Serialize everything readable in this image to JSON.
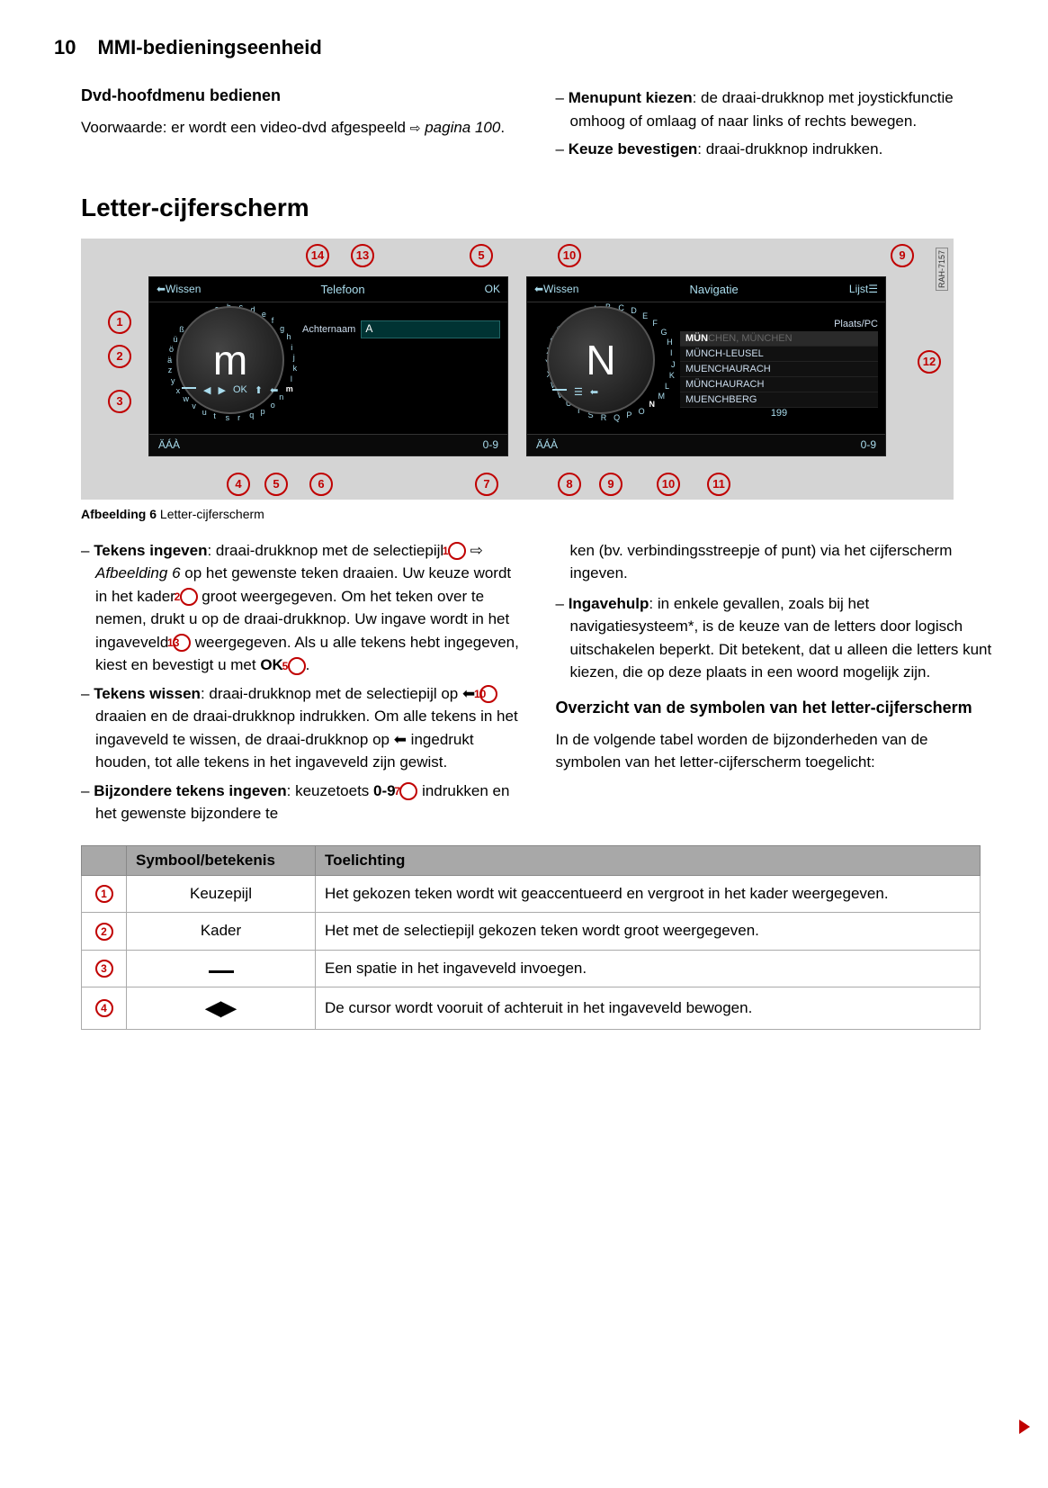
{
  "page": {
    "number": "10",
    "chapter": "MMI-bedieningseenheid"
  },
  "left_top": {
    "heading": "Dvd-hoofdmenu bedienen",
    "p1_a": "Voorwaarde: er wordt een video-dvd afgespeeld ",
    "p1_b": "pagina 100",
    "p1_c": "."
  },
  "right_top": {
    "item1_b": "Menupunt kiezen",
    "item1_t": ": de draai-drukknop met joystickfunctie omhoog of omlaag of naar links of rechts bewegen.",
    "item2_b": "Keuze bevestigen",
    "item2_t": ": draai-drukknop indrukken."
  },
  "big_heading": "Letter-cijferscherm",
  "figure": {
    "rah": "RAH-7157",
    "caption_b": "Afbeelding 6",
    "caption_t": " Letter-cijferscherm",
    "screen1": {
      "top_left": "⬅Wissen",
      "top_center": "Telefoon",
      "top_right": "OK",
      "input_label": "Achternaam",
      "input_value": "A",
      "dial_letter": "m",
      "bottom_left": "ÄÁÀ",
      "bottom_right": "0-9",
      "sym_ok": "OK",
      "ring": [
        "a",
        "b",
        "c",
        "d",
        "e",
        "f",
        "g",
        "h",
        "i",
        "j",
        "k",
        "l",
        "m",
        "n",
        "o",
        "p",
        "q",
        "r",
        "s",
        "t",
        "u",
        "v",
        "w",
        "x",
        "y",
        "z",
        "ä",
        "ö",
        "ü",
        "ß"
      ]
    },
    "screen2": {
      "top_left": "⬅Wissen",
      "top_center": "Navigatie",
      "top_right": "Lijst☰",
      "results_label": "Plaats/PC",
      "dial_letter": "N",
      "results": [
        {
          "prefix": "MÜN",
          "suffix": "CHEN, MÜNCHEN"
        },
        {
          "text": "MÜNCH-LEUSEL"
        },
        {
          "text": "MUENCHAURACH"
        },
        {
          "text": "MÜNCHAURACH"
        },
        {
          "text": "MUENCHBERG"
        }
      ],
      "count_prefix": "",
      "count": "199",
      "bottom_left": "ÄÁÀ",
      "bottom_right": "0-9",
      "ring": [
        "A",
        "B",
        "C",
        "D",
        "E",
        "F",
        "G",
        "H",
        "I",
        "J",
        "K",
        "L",
        "M",
        "N",
        "O",
        "P",
        "Q",
        "R",
        "S",
        "T",
        "U",
        "V",
        "W",
        "X",
        "Y",
        "Z",
        "Ö",
        "Ü"
      ]
    }
  },
  "body": {
    "l1_b": "Tekens ingeven",
    "l1_t1": ": draai-drukknop met de selectiepijl ",
    "l1_t2": " ⇨ ",
    "l1_i": "Afbeelding 6",
    "l1_t3": " op het gewenste teken draaien. Uw keuze wordt in het kader ",
    "l1_t4": " groot weergegeven. Om het teken over te nemen, drukt u op de draai-drukknop. Uw ingave wordt in het ingaveveld ",
    "l1_t5": " weergegeven. Als u alle tekens hebt ingegeven, kiest en bevestigt u met ",
    "l1_ok": "OK",
    "l1_t6": " ",
    "l1_t7": ".",
    "l2_b": "Tekens wissen",
    "l2_t1": ": draai-drukknop met de selectiepijl op ",
    "l2_t2": " draaien en de draai-drukknop indrukken. Om alle tekens in het ingaveveld te wissen, de draai-drukknop op ",
    "l2_t3": " ingedrukt houden, tot alle tekens in het ingaveveld zijn gewist.",
    "l3_b": "Bijzondere tekens ingeven",
    "l3_t1": ": keuzetoets ",
    "l3_09": "0-9",
    "l3_t2": " indrukken en het gewenste bijzondere te",
    "r0": "ken (bv. verbindingsstreepje of punt) via het cijferscherm ingeven.",
    "r1_b": "Ingavehulp",
    "r1_t": ": in enkele gevallen, zoals bij het navigatiesysteem*, is de keuze van de letters door logisch uitschakelen beperkt. Dit betekent, dat u alleen die letters kunt kiezen, die op deze plaats in een woord mogelijk zijn.",
    "subhead": "Overzicht van de symbolen van het letter-cijferscherm",
    "r2": "In de volgende tabel worden de bijzonderheden van de symbolen van het letter-cijferscherm toegelicht:"
  },
  "table": {
    "h1": "Symbool/betekenis",
    "h2": "Toelichting",
    "rows": [
      {
        "num": "1",
        "sym": "Keuzepijl",
        "exp": "Het gekozen teken wordt wit geaccentueerd en vergroot in het kader weergegeven."
      },
      {
        "num": "2",
        "sym": "Kader",
        "exp": "Het met de selectiepijl gekozen teken wordt groot weergegeven."
      },
      {
        "num": "3",
        "sym": "__space__",
        "exp": "Een spatie in het ingaveveld invoegen."
      },
      {
        "num": "4",
        "sym": "__cursor__",
        "exp": "De cursor wordt vooruit of achteruit in het ingaveveld bewogen."
      }
    ]
  }
}
